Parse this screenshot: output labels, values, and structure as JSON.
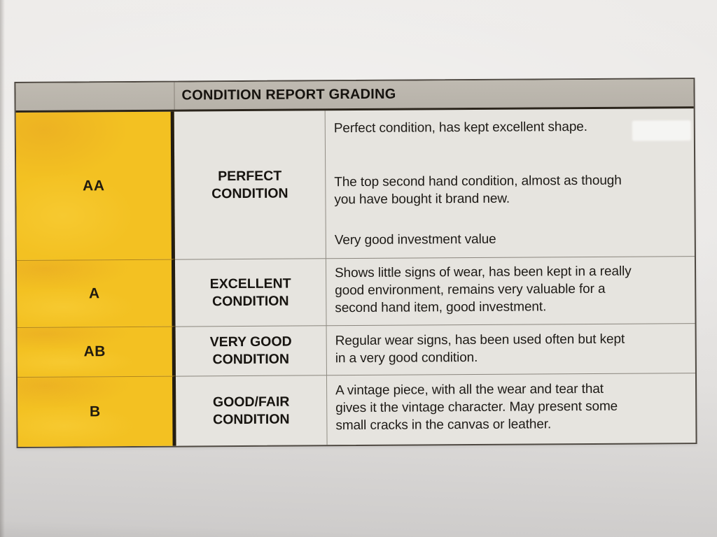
{
  "document": {
    "grading_table": {
      "header": "CONDITION REPORT GRADING",
      "rows": [
        {
          "grade": "AA",
          "condition": "PERFECT CONDITION",
          "condition_lines": [
            "PERFECT",
            "CONDITION"
          ],
          "paragraphs": [
            [
              "Perfect condition, has kept excellent shape."
            ],
            [
              "The top second hand condition, almost as though",
              "you have bought it brand new."
            ],
            [
              "Very good investment value"
            ]
          ]
        },
        {
          "grade": "A",
          "condition": "EXCELLENT CONDITION",
          "condition_lines": [
            "EXCELLENT",
            "CONDITION"
          ],
          "paragraphs": [
            [
              "Shows little signs of wear, has been kept in a really",
              "good environment, remains very valuable for a",
              "second hand item, good investment."
            ]
          ]
        },
        {
          "grade": "AB",
          "condition": "VERY GOOD CONDITION",
          "condition_lines": [
            "VERY GOOD",
            "CONDITION"
          ],
          "paragraphs": [
            [
              "Regular wear signs, has been used often but kept",
              "in a very good condition."
            ]
          ]
        },
        {
          "grade": "B",
          "condition": "GOOD/FAIR CONDITION",
          "condition_lines": [
            "GOOD/FAIR",
            "CONDITION"
          ],
          "paragraphs": [
            [
              "A vintage piece, with all the wear and tear that",
              "gives it the vintage character. May present some",
              "small cracks in the canvas or leather."
            ]
          ]
        }
      ],
      "colors": {
        "grade_column_yellow": "#f3c122",
        "header_bar_gray": "#b9b4ab",
        "cell_background": "#e6e4df",
        "paper_background": "#eae8e6",
        "text": "#1d1a16",
        "border_dark": "#2b251c"
      }
    }
  }
}
